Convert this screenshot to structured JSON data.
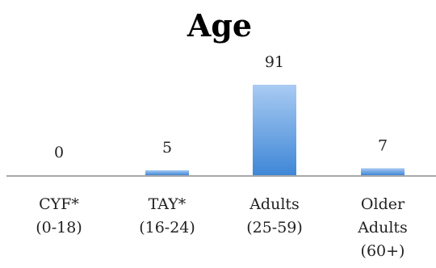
{
  "chart_data": {
    "type": "bar",
    "title": "Age",
    "categories": [
      [
        "CYF*",
        "(0-18)"
      ],
      [
        "TAY*",
        "(16-24)"
      ],
      [
        "Adults",
        "(25-59)"
      ],
      [
        "Older",
        "Adults",
        "(60+)"
      ]
    ],
    "values": [
      0,
      5,
      91,
      7
    ],
    "data_labels": [
      "0",
      "5",
      "91",
      "7"
    ],
    "xlabel": "",
    "ylabel": "",
    "ylim": [
      0,
      91
    ],
    "grid": false,
    "legend": "none",
    "colors": {
      "bar_top": "#a9cbf3",
      "bar_bottom": "#3f87d6",
      "axis": "#8c8c8c",
      "text": "#222222"
    }
  }
}
